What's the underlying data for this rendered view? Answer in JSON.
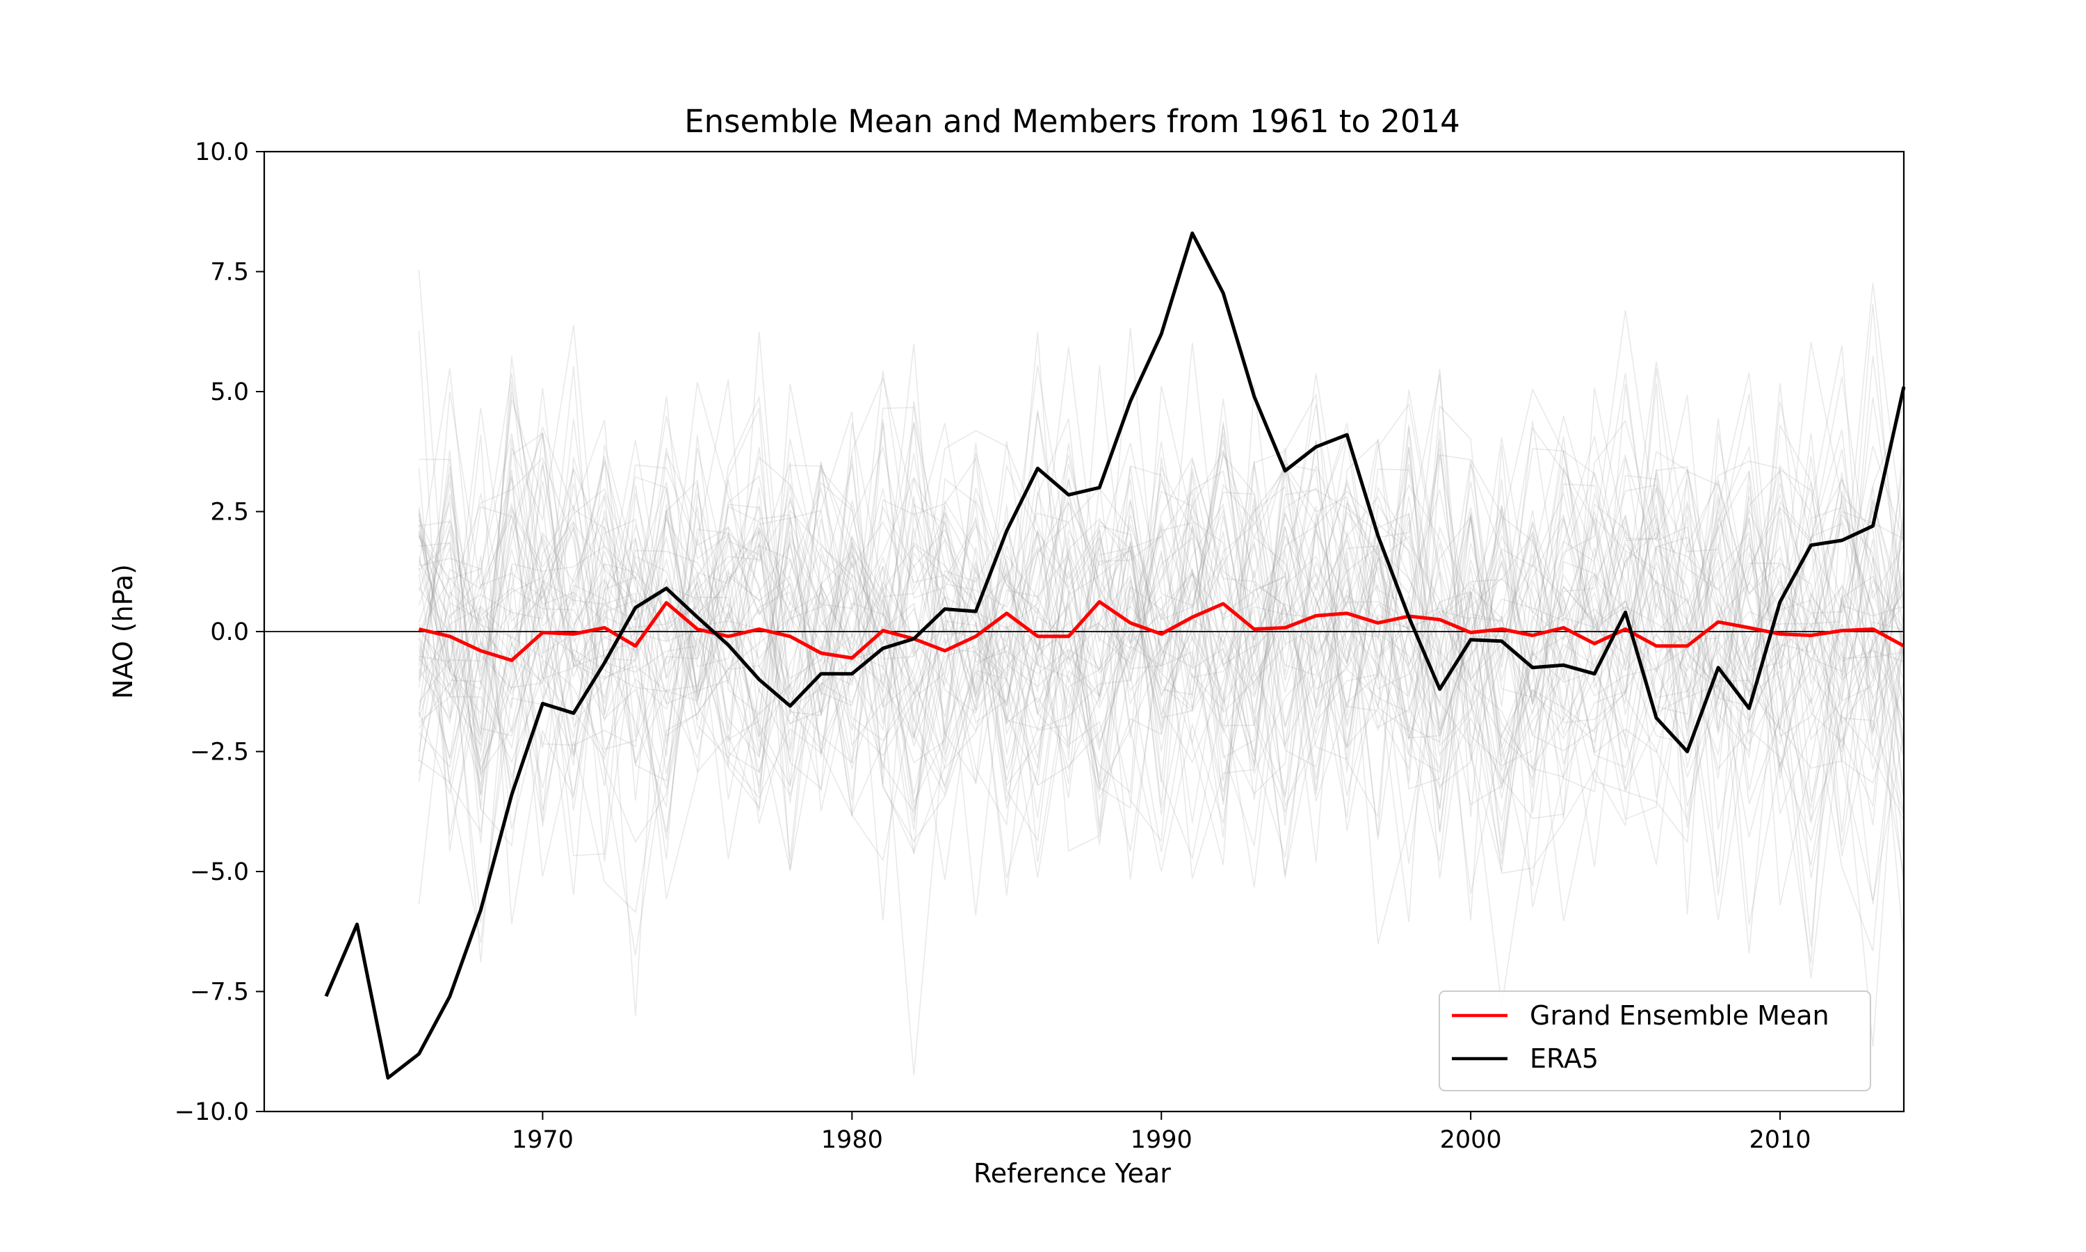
{
  "chart_data": {
    "type": "line",
    "title": "Ensemble Mean and Members from 1961 to 2014",
    "xlabel": "Reference Year",
    "ylabel": "NAO (hPa)",
    "xlim": [
      1961,
      2014
    ],
    "ylim": [
      -10,
      10
    ],
    "x_ticks": [
      1970,
      1980,
      1990,
      2000,
      2010
    ],
    "y_ticks": [
      -10.0,
      -7.5,
      -5.0,
      -2.5,
      0.0,
      2.5,
      5.0,
      7.5,
      10.0
    ],
    "x_tick_labels": [
      "1970",
      "1980",
      "1990",
      "2000",
      "2010"
    ],
    "y_tick_labels": [
      "−10.0",
      "−7.5",
      "−5.0",
      "−2.5",
      "0.0",
      "2.5",
      "5.0",
      "7.5",
      "10.0"
    ],
    "grid": false,
    "zero_line": true,
    "legend_position": "lower-right",
    "colors": {
      "mean": "#ff0000",
      "era5": "#000000",
      "members": "#9a9a9a"
    },
    "members": {
      "description_hidden": true,
      "count": 60,
      "x_start": 1966,
      "x_end": 2014,
      "spread_std": 2.3
    },
    "series": [
      {
        "name": "Grand Ensemble Mean",
        "color": "#ff0000",
        "x": [
          1966,
          1967,
          1968,
          1969,
          1970,
          1971,
          1972,
          1973,
          1974,
          1975,
          1976,
          1977,
          1978,
          1979,
          1980,
          1981,
          1982,
          1983,
          1984,
          1985,
          1986,
          1987,
          1988,
          1989,
          1990,
          1991,
          1992,
          1993,
          1994,
          1995,
          1996,
          1997,
          1998,
          1999,
          2000,
          2001,
          2002,
          2003,
          2004,
          2005,
          2006,
          2007,
          2008,
          2009,
          2010,
          2011,
          2012,
          2013,
          2014
        ],
        "y": [
          0.05,
          -0.1,
          -0.4,
          -0.6,
          -0.02,
          -0.05,
          0.08,
          -0.3,
          0.6,
          0.05,
          -0.1,
          0.05,
          -0.1,
          -0.45,
          -0.55,
          0.02,
          -0.15,
          -0.4,
          -0.1,
          0.38,
          -0.1,
          -0.1,
          0.62,
          0.18,
          -0.05,
          0.3,
          0.58,
          0.05,
          0.08,
          0.33,
          0.38,
          0.18,
          0.32,
          0.25,
          -0.02,
          0.05,
          -0.08,
          0.08,
          -0.25,
          0.05,
          -0.3,
          -0.3,
          0.2,
          0.08,
          -0.05,
          -0.08,
          0.02,
          0.05,
          -0.3
        ]
      },
      {
        "name": "ERA5",
        "color": "#000000",
        "x": [
          1963,
          1964,
          1965,
          1966,
          1967,
          1968,
          1969,
          1970,
          1971,
          1972,
          1973,
          1974,
          1975,
          1976,
          1977,
          1978,
          1979,
          1980,
          1981,
          1982,
          1983,
          1984,
          1985,
          1986,
          1987,
          1988,
          1989,
          1990,
          1991,
          1992,
          1993,
          1994,
          1995,
          1996,
          1997,
          1998,
          1999,
          2000,
          2001,
          2002,
          2003,
          2004,
          2005,
          2006,
          2007,
          2008,
          2009,
          2010,
          2011,
          2012,
          2013,
          2014
        ],
        "y": [
          -7.6,
          -6.1,
          -9.3,
          -8.8,
          -7.6,
          -5.8,
          -3.4,
          -1.5,
          -1.7,
          -0.65,
          0.5,
          0.9,
          0.3,
          -0.28,
          -1.0,
          -1.55,
          -0.88,
          -0.88,
          -0.35,
          -0.15,
          0.47,
          0.42,
          2.1,
          3.4,
          2.85,
          3.0,
          4.8,
          6.2,
          8.3,
          7.05,
          4.9,
          3.35,
          3.85,
          4.1,
          2.0,
          0.3,
          -1.2,
          -0.17,
          -0.2,
          -0.75,
          -0.7,
          -0.88,
          0.4,
          -1.8,
          -2.5,
          -0.75,
          -1.6,
          0.62,
          1.8,
          1.9,
          2.2,
          5.1
        ]
      }
    ]
  }
}
